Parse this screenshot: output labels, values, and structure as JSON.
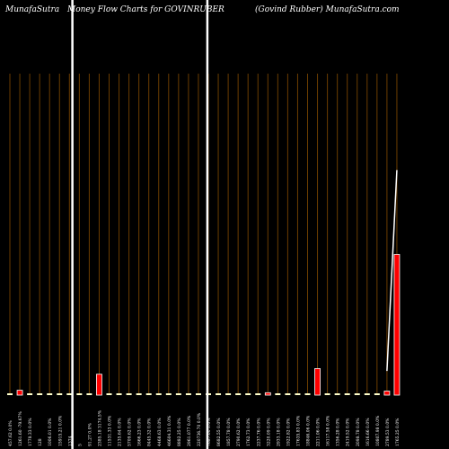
{
  "header": {
    "site": "MunafaSutra",
    "title": "Money Flow  Charts for GOVINRUBER",
    "subtitle": "(Govind Rubber) MunafaSutra.com"
  },
  "chart_data": {
    "type": "bar",
    "title": "Money Flow  Charts for GOVINRUBER",
    "categories": [
      "457.62 0.0%",
      "1261.60 -79.67%",
      "1778.33 0.0%",
      "128",
      "1006.01 0.0%",
      "15915.21 0.0%",
      "1374",
      "5",
      "91.27 0.0%",
      "2385.18 3174.5%",
      "11531.33 0.0%",
      "2135.64 0.0%",
      "5709.62 0.0%",
      "1666.23 0.0%",
      "8445.32 0.0%",
      "4468.63 0.0%",
      "46604.31 0.0%",
      "8882.25 0.0%",
      "2961.077 0.0%",
      "220736.70 0.0%",
      "7687.00 0.0%",
      "8682.55 0.0%",
      "1857.78 0.0%",
      "2790.62 0.0%",
      "1762.73 0.0%",
      "2237.76 0.0%",
      "3220.09 0.0%",
      "2933.18 0.0%",
      "1922.82 0.0%",
      "17635.83 0.0%",
      "18846.06 0.0%",
      "2211.06 0.0%",
      "16117.58 0.0%",
      "1356.28 0.0%",
      "2419.52 0.0%",
      "2098.78 0.0%",
      "1616.66 0.0%",
      "10807.98 0.0%",
      "2789.53 0.0%",
      "1765.25 0.0%"
    ],
    "values": [
      0.2,
      0.6,
      0.2,
      0.2,
      0.2,
      0.2,
      0.2,
      0.2,
      0.2,
      2.6,
      0.2,
      0.2,
      0.2,
      0.2,
      0.2,
      0.2,
      0.2,
      0.2,
      0.2,
      0.2,
      0.2,
      0.2,
      0.2,
      0.2,
      0.2,
      0.2,
      0.3,
      0.2,
      0.2,
      0.2,
      0.2,
      3.3,
      0.2,
      0.2,
      0.2,
      0.2,
      0.2,
      0.2,
      0.5,
      17.5
    ],
    "highlighted": [
      1,
      9,
      26,
      31,
      38,
      39
    ],
    "price_line": [
      {
        "index": 38,
        "value": 3.0
      },
      {
        "index": 39,
        "value": 28.0
      }
    ],
    "ylim": [
      0,
      40
    ],
    "grid": true,
    "colors": {
      "background": "#000000",
      "gridline": "#6b3d00",
      "bar_fill": "#ffffcc",
      "bar_highlight": "#ff0000",
      "bar_outline": "#ffffff",
      "price_line": "#ffffff",
      "marker_line": "#ffffff",
      "label": "#ffffff"
    }
  }
}
